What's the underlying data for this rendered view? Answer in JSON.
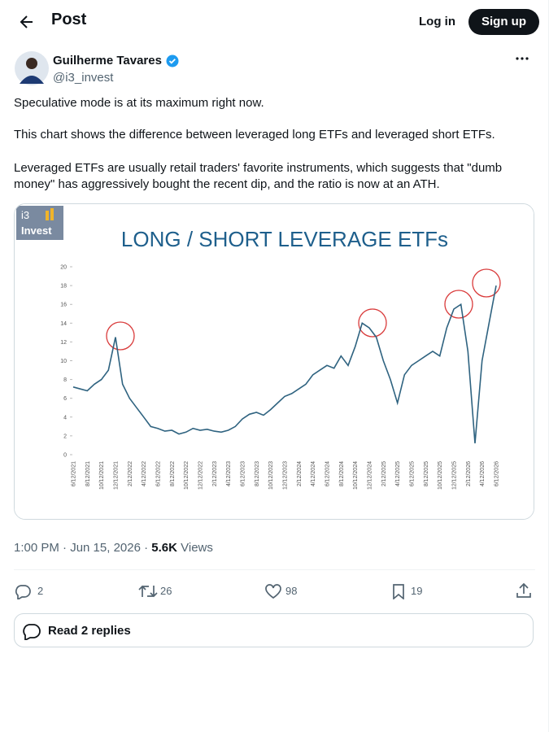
{
  "header": {
    "title": "Post",
    "login": "Log in",
    "signup": "Sign up"
  },
  "author": {
    "name": "Guilherme Tavares",
    "handle": "@i3_invest"
  },
  "tweet": {
    "paragraphs": [
      "Speculative mode is at its maximum right now.",
      "This chart shows the difference between leveraged long ETFs and leveraged short ETFs.",
      "Leveraged ETFs are usually retail traders' favorite instruments, which suggests that \"dumb money\" has aggressively bought the recent dip, and the ratio is now at an ATH."
    ]
  },
  "logo": {
    "top": "i3",
    "bottom": "Invest"
  },
  "chart_data": {
    "type": "line",
    "title": "LONG / SHORT LEVERAGE ETFs",
    "color": "#2f6380",
    "categories": [
      "6/12/2021",
      null,
      "8/12/2021",
      null,
      "10/12/2021",
      null,
      "12/12/2021",
      null,
      "2/12/2022",
      null,
      "4/12/2022",
      null,
      "6/12/2022",
      null,
      "8/12/2022",
      null,
      "10/12/2022",
      null,
      "12/12/2022",
      null,
      "2/12/2023",
      null,
      "4/12/2023",
      null,
      "6/12/2023",
      null,
      "8/12/2023",
      null,
      "10/12/2023",
      null,
      "12/12/2023",
      null,
      "2/12/2024",
      null,
      "4/12/2024",
      null,
      "6/12/2024",
      null,
      "8/12/2024",
      null,
      "10/12/2024",
      null,
      "12/12/2024",
      null,
      "2/12/2025",
      null,
      "4/12/2025",
      null,
      "6/12/2025",
      null,
      "8/12/2025",
      null,
      "10/12/2025",
      null,
      "12/12/2025",
      null,
      "2/12/2026",
      null,
      "4/12/2026",
      null,
      "6/12/2026"
    ],
    "values": [
      7.2,
      7.0,
      6.8,
      7.5,
      8.0,
      9.0,
      12.5,
      7.5,
      6.0,
      5.0,
      4.0,
      3.0,
      2.8,
      2.5,
      2.6,
      2.2,
      2.4,
      2.8,
      2.6,
      2.7,
      2.5,
      2.4,
      2.6,
      3.0,
      3.8,
      4.3,
      4.5,
      4.2,
      4.8,
      5.5,
      6.2,
      6.5,
      7.0,
      7.5,
      8.5,
      9.0,
      9.5,
      9.2,
      10.5,
      9.5,
      11.5,
      14.0,
      13.5,
      12.5,
      10.0,
      8.0,
      5.5,
      8.5,
      9.5,
      10.0,
      10.5,
      11.0,
      10.5,
      13.5,
      15.5,
      16.0,
      11.0,
      1.2,
      10.0,
      14.0,
      18.0
    ],
    "ylim": [
      0,
      20
    ],
    "yticks": [
      0,
      2,
      4,
      6,
      8,
      10,
      12,
      14,
      16,
      18,
      20
    ]
  },
  "meta": {
    "time": "1:00 PM · Jun 15, 2026 ·",
    "views": "5.6K",
    "views_label": "Views"
  },
  "actions": {
    "replies": 2,
    "reposts": 26,
    "likes": 98,
    "bookmarks": 19
  },
  "read_replies": "Read 2 replies"
}
